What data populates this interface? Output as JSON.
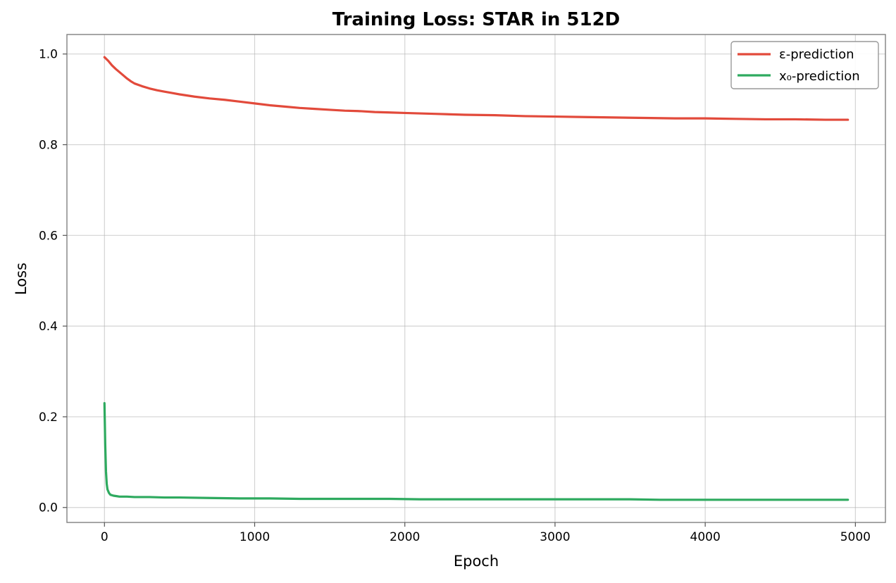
{
  "chart_data": {
    "type": "line",
    "title": "Training Loss: STAR in 512D",
    "xlabel": "Epoch",
    "ylabel": "Loss",
    "xlim": [
      -250,
      5200
    ],
    "ylim": [
      -0.033,
      1.043
    ],
    "xticks": [
      0,
      1000,
      2000,
      3000,
      4000,
      5000
    ],
    "xtick_labels": [
      "0",
      "1000",
      "2000",
      "3000",
      "4000",
      "5000"
    ],
    "yticks": [
      0.0,
      0.2,
      0.4,
      0.6,
      0.8,
      1.0
    ],
    "ytick_labels": [
      "0.0",
      "0.2",
      "0.4",
      "0.6",
      "0.8",
      "1.0"
    ],
    "grid": true,
    "legend_position": "top-right",
    "series": [
      {
        "name": "ε-prediction",
        "color": "#e24a3b",
        "points": [
          [
            0,
            0.993
          ],
          [
            25,
            0.985
          ],
          [
            50,
            0.975
          ],
          [
            75,
            0.967
          ],
          [
            100,
            0.96
          ],
          [
            125,
            0.953
          ],
          [
            150,
            0.946
          ],
          [
            175,
            0.94
          ],
          [
            200,
            0.935
          ],
          [
            250,
            0.929
          ],
          [
            300,
            0.924
          ],
          [
            350,
            0.92
          ],
          [
            400,
            0.917
          ],
          [
            450,
            0.914
          ],
          [
            500,
            0.911
          ],
          [
            600,
            0.906
          ],
          [
            700,
            0.902
          ],
          [
            800,
            0.899
          ],
          [
            900,
            0.895
          ],
          [
            1000,
            0.891
          ],
          [
            1100,
            0.887
          ],
          [
            1200,
            0.884
          ],
          [
            1300,
            0.881
          ],
          [
            1400,
            0.879
          ],
          [
            1500,
            0.877
          ],
          [
            1600,
            0.875
          ],
          [
            1700,
            0.874
          ],
          [
            1800,
            0.872
          ],
          [
            1900,
            0.871
          ],
          [
            2000,
            0.87
          ],
          [
            2200,
            0.868
          ],
          [
            2400,
            0.866
          ],
          [
            2600,
            0.865
          ],
          [
            2800,
            0.863
          ],
          [
            3000,
            0.862
          ],
          [
            3200,
            0.861
          ],
          [
            3400,
            0.86
          ],
          [
            3600,
            0.859
          ],
          [
            3800,
            0.858
          ],
          [
            4000,
            0.858
          ],
          [
            4200,
            0.857
          ],
          [
            4400,
            0.856
          ],
          [
            4600,
            0.856
          ],
          [
            4800,
            0.855
          ],
          [
            4950,
            0.855
          ]
        ]
      },
      {
        "name": "x₀-prediction",
        "color": "#2eaa5f",
        "points": [
          [
            0,
            0.23
          ],
          [
            5,
            0.14
          ],
          [
            10,
            0.08
          ],
          [
            15,
            0.052
          ],
          [
            20,
            0.04
          ],
          [
            30,
            0.032
          ],
          [
            40,
            0.028
          ],
          [
            60,
            0.026
          ],
          [
            80,
            0.025
          ],
          [
            100,
            0.024
          ],
          [
            150,
            0.024
          ],
          [
            200,
            0.023
          ],
          [
            300,
            0.023
          ],
          [
            400,
            0.022
          ],
          [
            500,
            0.022
          ],
          [
            700,
            0.021
          ],
          [
            900,
            0.02
          ],
          [
            1100,
            0.02
          ],
          [
            1300,
            0.019
          ],
          [
            1500,
            0.019
          ],
          [
            1700,
            0.019
          ],
          [
            1900,
            0.019
          ],
          [
            2100,
            0.018
          ],
          [
            2300,
            0.018
          ],
          [
            2500,
            0.018
          ],
          [
            2700,
            0.018
          ],
          [
            2900,
            0.018
          ],
          [
            3100,
            0.018
          ],
          [
            3300,
            0.018
          ],
          [
            3500,
            0.018
          ],
          [
            3700,
            0.017
          ],
          [
            3900,
            0.017
          ],
          [
            4100,
            0.017
          ],
          [
            4300,
            0.017
          ],
          [
            4500,
            0.017
          ],
          [
            4700,
            0.017
          ],
          [
            4950,
            0.017
          ]
        ]
      }
    ]
  }
}
